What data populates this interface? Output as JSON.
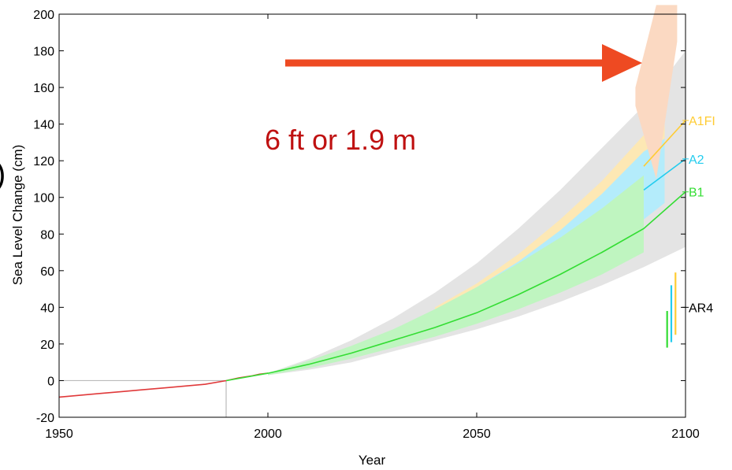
{
  "chart_data": {
    "type": "line",
    "xlabel": "Year",
    "ylabel": "Sea Level Change (cm)",
    "xlim": [
      1950,
      2100
    ],
    "ylim": [
      -20,
      200
    ],
    "xticks": [
      1950,
      2000,
      2050,
      2100
    ],
    "yticks": [
      -20,
      0,
      20,
      40,
      60,
      80,
      100,
      120,
      140,
      160,
      180,
      200
    ],
    "grid": false,
    "colors": {
      "observed": "#e0393a",
      "B1": "#33dd33",
      "A2": "#22ccee",
      "A1FI": "#ffcc33",
      "envelope_outer": "#e4e4e4",
      "band_A1FI": "#fde8b4",
      "band_A2": "#b4ecfb",
      "band_B1": "#bff5c0",
      "annotation_text": "#bf1111",
      "arrow": "#ee4a22",
      "high_end_plume": "#fbd9c2",
      "AR4": "#000000"
    },
    "observed": {
      "x": [
        1950,
        1955,
        1960,
        1965,
        1970,
        1975,
        1980,
        1985,
        1990,
        1993,
        1996,
        1998,
        2000
      ],
      "y": [
        -9,
        -8,
        -7,
        -6,
        -5,
        -4,
        -3,
        -2,
        0,
        1.5,
        2.5,
        3.5,
        4
      ]
    },
    "series": [
      {
        "name": "B1",
        "x": [
          1990,
          2000,
          2010,
          2020,
          2030,
          2040,
          2050,
          2060,
          2070,
          2080,
          2090,
          2100
        ],
        "y": [
          0,
          4,
          9,
          15,
          22,
          29,
          37,
          47,
          58,
          70,
          83,
          103
        ]
      },
      {
        "name": "A2",
        "x": [
          2090,
          2100
        ],
        "y": [
          104,
          121
        ]
      },
      {
        "name": "A1FI",
        "x": [
          2090,
          2100
        ],
        "y": [
          117,
          142
        ]
      }
    ],
    "bands": {
      "outer": {
        "x": [
          2000,
          2010,
          2020,
          2030,
          2040,
          2050,
          2060,
          2070,
          2080,
          2090,
          2100
        ],
        "lower": [
          3,
          6,
          10,
          16,
          22,
          28,
          35,
          43,
          52,
          62,
          73
        ],
        "upper": [
          4,
          12,
          22,
          34,
          48,
          64,
          83,
          104,
          127,
          150,
          180
        ]
      },
      "A1FI": {
        "x": [
          2040,
          2050,
          2060,
          2070,
          2080,
          2090,
          2095
        ],
        "lower": [
          32,
          40,
          50,
          62,
          76,
          90,
          100
        ],
        "upper": [
          40,
          53,
          69,
          88,
          109,
          134,
          147
        ]
      },
      "A2": {
        "x": [
          2030,
          2040,
          2050,
          2060,
          2070,
          2080,
          2090,
          2095
        ],
        "lower": [
          22,
          30,
          39,
          48,
          60,
          73,
          88,
          97
        ],
        "upper": [
          28,
          38,
          51,
          65,
          82,
          102,
          125,
          132
        ]
      },
      "B1": {
        "x": [
          2000,
          2010,
          2020,
          2030,
          2040,
          2050,
          2060,
          2070,
          2080,
          2090
        ],
        "lower": [
          3,
          7,
          12,
          18,
          24,
          31,
          39,
          48,
          58,
          70
        ],
        "upper": [
          4,
          11,
          19,
          28,
          39,
          51,
          64,
          78,
          94,
          112
        ]
      },
      "high_end": {
        "x": [
          2088,
          2093,
          2098
        ],
        "lower": [
          150,
          110,
          185
        ],
        "upper": [
          160,
          205,
          205
        ]
      }
    },
    "ar4_bars": [
      {
        "x": 2095.6,
        "y0": 18,
        "y1": 38,
        "color": "#33dd33"
      },
      {
        "x": 2096.6,
        "y0": 21,
        "y1": 52,
        "color": "#22ccee"
      },
      {
        "x": 2097.6,
        "y0": 25,
        "y1": 59,
        "color": "#ffcc33"
      }
    ],
    "reference_lines": {
      "x": 1990,
      "y": 0
    },
    "labels": {
      "A1FI": "A1FI",
      "A2": "A2",
      "B1": "B1",
      "AR4": "AR4",
      "annotation": "6 ft or 1.9 m",
      "left_fragment": ")"
    },
    "label_y": {
      "A1FI": 142,
      "A2": 121,
      "B1": 103,
      "AR4": 40
    }
  }
}
